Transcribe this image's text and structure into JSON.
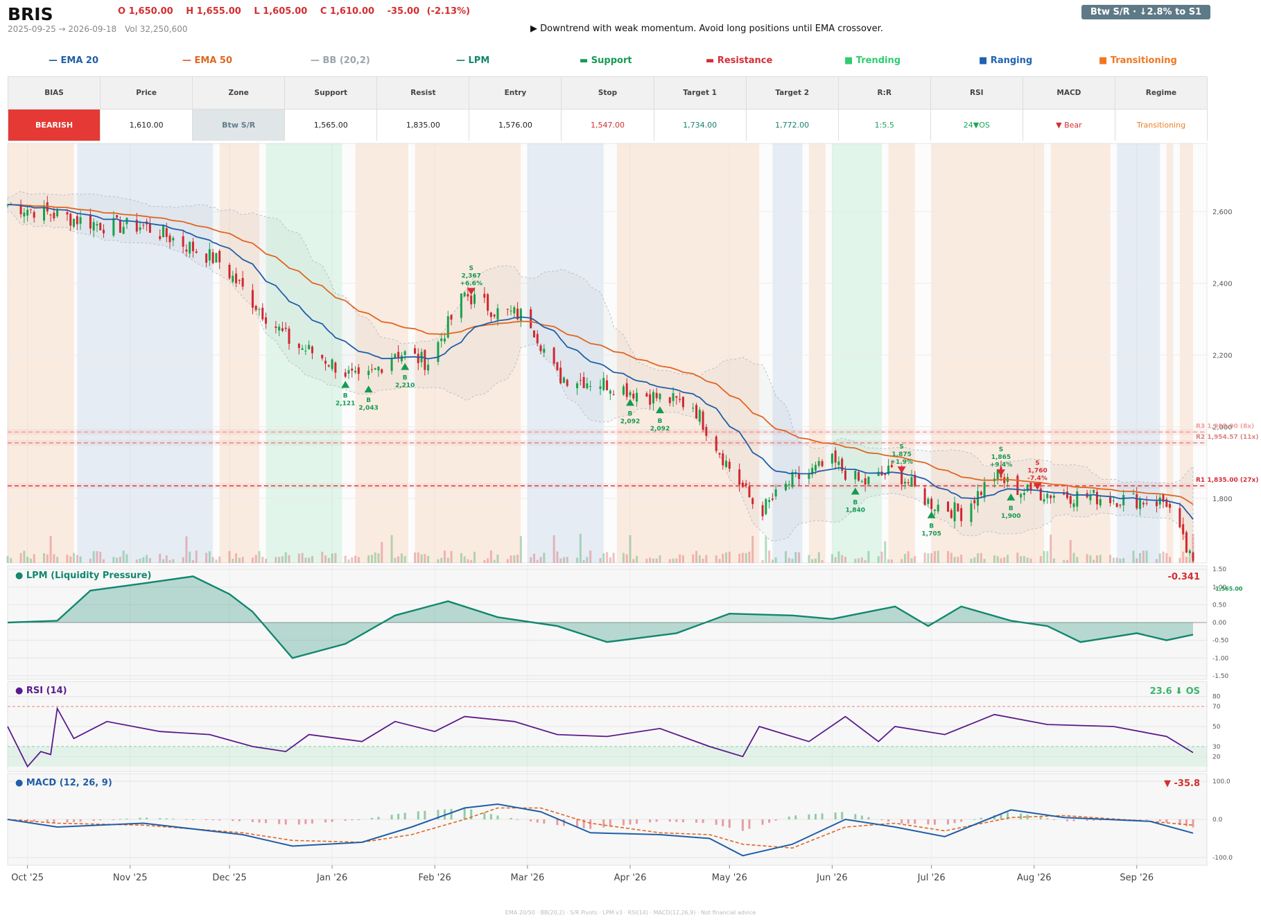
{
  "header": {
    "ticker": "BRIS",
    "ohlc": {
      "open": "O 1,650.00",
      "high": "H 1,655.00",
      "low": "L 1,605.00",
      "close": "C 1,610.00",
      "change": "-35.00",
      "change_pct": "(-2.13%)"
    },
    "range": "2025-09-25 → 2026-09-18",
    "volume": "Vol 32,250,600",
    "signal": "▶  Downtrend with weak momentum. Avoid long positions until EMA crossover.",
    "badge": "Btw S/R  ·  ↓2.8% to S1"
  },
  "legend": [
    {
      "glyph": "—",
      "label": "EMA 20",
      "color": "#1f5ea8"
    },
    {
      "glyph": "—",
      "label": "EMA 50",
      "color": "#e0651f"
    },
    {
      "glyph": "—",
      "label": "BB (20,2)",
      "color": "#9aa5ad"
    },
    {
      "glyph": "—",
      "label": "LPM",
      "color": "#12876e"
    },
    {
      "glyph": "▬",
      "label": "Support",
      "color": "#169a52"
    },
    {
      "glyph": "▬",
      "label": "Resistance",
      "color": "#d62d37"
    },
    {
      "glyph": "■",
      "label": "Trending",
      "color": "#2ecc71"
    },
    {
      "glyph": "■",
      "label": "Ranging",
      "color": "#1e62b0"
    },
    {
      "glyph": "■",
      "label": "Transitioning",
      "color": "#f07722"
    }
  ],
  "table": {
    "headers": [
      "BIAS",
      "Price",
      "Zone",
      "Support",
      "Resist",
      "Entry",
      "Stop",
      "Target 1",
      "Target 2",
      "R:R",
      "RSI",
      "MACD",
      "Regime"
    ],
    "values": [
      "BEARISH",
      "1,610.00",
      "Btw S/R",
      "1,565.00",
      "1,835.00",
      "1,576.00",
      "1,547.00",
      "1,734.00",
      "1,772.00",
      "1:5.5",
      "24▼OS",
      "▼ Bear",
      "Transitioning"
    ],
    "colors": [
      "#ffffff",
      "#222222",
      "#607d8b",
      "#222222",
      "#222222",
      "#222222",
      "#d32f2f",
      "#17806c",
      "#17806c",
      "#1ba45a",
      "#1ba45a",
      "#d32f2f",
      "#ef7d22"
    ],
    "backgrounds": [
      "#e53935",
      "#ffffff",
      "#e0e5e8",
      "#ffffff",
      "#ffffff",
      "#ffffff",
      "#ffffff",
      "#ffffff",
      "#ffffff",
      "#ffffff",
      "#ffffff",
      "#ffffff",
      "#ffffff"
    ]
  },
  "panels": {
    "lpm_title": "● LPM (Liquidity Pressure)",
    "lpm_value": "-0.341",
    "lpm_extra": "1,565.00",
    "rsi_title": "● RSI (14)",
    "rsi_value": "23.6 ⬇ OS",
    "macd_title": "● MACD (12, 26, 9)",
    "macd_value": "▼ -35.8"
  },
  "footer": "EMA 20/50  ·  BB(20,2)  ·  S/R Pivots  ·  LPM v3  ·  RSI(14)  ·  MACD(12,26,9)  ·  Not financial advice",
  "chart_data": {
    "type": "candlestick",
    "x_months": [
      "Oct '25",
      "Nov '25",
      "Dec '25",
      "Jan '26",
      "Feb '26",
      "Mar '26",
      "Apr '26",
      "May '26",
      "Jun '26",
      "Jul '26",
      "Aug '26",
      "Sep '26"
    ],
    "price_ticks": [
      "2,600",
      "2,400",
      "2,200",
      "2,000",
      "1,800"
    ],
    "ylim": [
      1620,
      2790
    ],
    "price_keypoints": [
      {
        "d": "2025-09-25",
        "c": 2620
      },
      {
        "d": "2025-10-10",
        "c": 2590
      },
      {
        "d": "2025-10-25",
        "c": 2560
      },
      {
        "d": "2025-11-05",
        "c": 2560
      },
      {
        "d": "2025-11-15",
        "c": 2520
      },
      {
        "d": "2025-11-28",
        "c": 2460
      },
      {
        "d": "2025-12-08",
        "c": 2350
      },
      {
        "d": "2025-12-20",
        "c": 2230
      },
      {
        "d": "2025-12-28",
        "c": 2200
      },
      {
        "d": "2026-01-10",
        "c": 2120
      },
      {
        "d": "2026-01-20",
        "c": 2210
      },
      {
        "d": "2026-01-30",
        "c": 2180
      },
      {
        "d": "2026-02-10",
        "c": 2370
      },
      {
        "d": "2026-02-20",
        "c": 2320
      },
      {
        "d": "2026-03-01",
        "c": 2310
      },
      {
        "d": "2026-03-10",
        "c": 2140
      },
      {
        "d": "2026-03-25",
        "c": 2120
      },
      {
        "d": "2026-04-05",
        "c": 2090
      },
      {
        "d": "2026-04-20",
        "c": 2060
      },
      {
        "d": "2026-04-30",
        "c": 1900
      },
      {
        "d": "2026-05-10",
        "c": 1760
      },
      {
        "d": "2026-05-20",
        "c": 1850
      },
      {
        "d": "2026-06-01",
        "c": 1900
      },
      {
        "d": "2026-06-10",
        "c": 1840
      },
      {
        "d": "2026-06-20",
        "c": 1880
      },
      {
        "d": "2026-06-30",
        "c": 1790
      },
      {
        "d": "2026-07-10",
        "c": 1760
      },
      {
        "d": "2026-07-20",
        "c": 1865
      },
      {
        "d": "2026-07-28",
        "c": 1820
      },
      {
        "d": "2026-08-10",
        "c": 1810
      },
      {
        "d": "2026-08-25",
        "c": 1800
      },
      {
        "d": "2026-09-10",
        "c": 1790
      },
      {
        "d": "2026-09-18",
        "c": 1610
      }
    ],
    "levels": [
      {
        "label": "R3 1,985.00 (8x)",
        "price": 1985,
        "color": "#f0a0a0"
      },
      {
        "label": "R2 1,954.57 (11x)",
        "price": 1955,
        "color": "#e08080"
      },
      {
        "label": "R1 1,835.00 (27x)",
        "price": 1835,
        "color": "#d62d37"
      }
    ],
    "signals": [
      {
        "type": "B",
        "d": "2026-01-05",
        "price": "2,121",
        "pct": ""
      },
      {
        "type": "B",
        "d": "2026-01-12",
        "price": "2,043",
        "pct": ""
      },
      {
        "type": "B",
        "d": "2026-01-23",
        "price": "2,210",
        "pct": ""
      },
      {
        "type": "S",
        "d": "2026-02-12",
        "price": "2,367",
        "pct": "+6.6%"
      },
      {
        "type": "B",
        "d": "2026-04-01",
        "price": "2,092",
        "pct": ""
      },
      {
        "type": "B",
        "d": "2026-04-10",
        "price": "2,092",
        "pct": ""
      },
      {
        "type": "B",
        "d": "2026-06-08",
        "price": "1,840",
        "pct": ""
      },
      {
        "type": "S",
        "d": "2026-06-22",
        "price": "1,875",
        "pct": "+1.9%"
      },
      {
        "type": "B",
        "d": "2026-07-01",
        "price": "1,705",
        "pct": ""
      },
      {
        "type": "S",
        "d": "2026-07-22",
        "price": "1,865",
        "pct": "+9.4%"
      },
      {
        "type": "B",
        "d": "2026-07-25",
        "price": "1,900",
        "pct": ""
      },
      {
        "type": "S",
        "d": "2026-08-02",
        "price": "1,760",
        "pct": "-7.4%"
      },
      {
        "type": "B",
        "d": "2026-09-17",
        "price": "",
        "pct": ""
      }
    ],
    "regimes": [
      {
        "from": "2025-09-25",
        "to": "2025-10-15",
        "kind": "transitioning"
      },
      {
        "from": "2025-10-16",
        "to": "2025-11-26",
        "kind": "ranging"
      },
      {
        "from": "2025-11-28",
        "to": "2025-12-10",
        "kind": "transitioning"
      },
      {
        "from": "2025-12-12",
        "to": "2026-01-04",
        "kind": "trending"
      },
      {
        "from": "2026-01-08",
        "to": "2026-01-24",
        "kind": "transitioning"
      },
      {
        "from": "2026-01-26",
        "to": "2026-02-27",
        "kind": "transitioning"
      },
      {
        "from": "2026-03-01",
        "to": "2026-03-24",
        "kind": "ranging"
      },
      {
        "from": "2026-03-28",
        "to": "2026-05-10",
        "kind": "transitioning"
      },
      {
        "from": "2026-05-14",
        "to": "2026-05-23",
        "kind": "ranging"
      },
      {
        "from": "2026-05-25",
        "to": "2026-05-30",
        "kind": "transitioning"
      },
      {
        "from": "2026-06-01",
        "to": "2026-06-16",
        "kind": "trending"
      },
      {
        "from": "2026-06-18",
        "to": "2026-06-26",
        "kind": "transitioning"
      },
      {
        "from": "2026-07-01",
        "to": "2026-08-04",
        "kind": "transitioning"
      },
      {
        "from": "2026-08-06",
        "to": "2026-08-24",
        "kind": "transitioning"
      },
      {
        "from": "2026-08-26",
        "to": "2026-09-08",
        "kind": "ranging"
      },
      {
        "from": "2026-09-10",
        "to": "2026-09-12",
        "kind": "transitioning"
      },
      {
        "from": "2026-09-14",
        "to": "2026-09-18",
        "kind": "transitioning"
      }
    ],
    "lpm_ticks": [
      "1.50",
      "1.00",
      "0.50",
      "0.00",
      "-0.50",
      "-1.00",
      "-1.50"
    ],
    "lpm_keypoints": [
      {
        "d": "2025-09-25",
        "v": 0
      },
      {
        "d": "2025-10-10",
        "v": 0.05
      },
      {
        "d": "2025-10-20",
        "v": 0.9
      },
      {
        "d": "2025-11-05",
        "v": 1.1
      },
      {
        "d": "2025-11-20",
        "v": 1.3
      },
      {
        "d": "2025-12-01",
        "v": 0.8
      },
      {
        "d": "2025-12-08",
        "v": 0.3
      },
      {
        "d": "2025-12-20",
        "v": -1.0
      },
      {
        "d": "2026-01-05",
        "v": -0.6
      },
      {
        "d": "2026-01-20",
        "v": 0.2
      },
      {
        "d": "2026-02-05",
        "v": 0.6
      },
      {
        "d": "2026-02-20",
        "v": 0.15
      },
      {
        "d": "2026-03-10",
        "v": -0.1
      },
      {
        "d": "2026-03-25",
        "v": -0.55
      },
      {
        "d": "2026-04-15",
        "v": -0.3
      },
      {
        "d": "2026-05-01",
        "v": 0.25
      },
      {
        "d": "2026-05-20",
        "v": 0.2
      },
      {
        "d": "2026-06-01",
        "v": 0.1
      },
      {
        "d": "2026-06-20",
        "v": 0.45
      },
      {
        "d": "2026-06-30",
        "v": -0.1
      },
      {
        "d": "2026-07-10",
        "v": 0.45
      },
      {
        "d": "2026-07-25",
        "v": 0.05
      },
      {
        "d": "2026-08-05",
        "v": -0.1
      },
      {
        "d": "2026-08-15",
        "v": -0.55
      },
      {
        "d": "2026-09-01",
        "v": -0.3
      },
      {
        "d": "2026-09-10",
        "v": -0.5
      },
      {
        "d": "2026-09-18",
        "v": -0.34
      }
    ],
    "rsi_ticks": [
      "80",
      "70",
      "50",
      "30",
      "20"
    ],
    "rsi_keypoints": [
      {
        "d": "2025-09-25",
        "v": 50
      },
      {
        "d": "2025-10-01",
        "v": 10
      },
      {
        "d": "2025-10-05",
        "v": 25
      },
      {
        "d": "2025-10-08",
        "v": 22
      },
      {
        "d": "2025-10-10",
        "v": 68
      },
      {
        "d": "2025-10-15",
        "v": 38
      },
      {
        "d": "2025-10-25",
        "v": 55
      },
      {
        "d": "2025-11-10",
        "v": 45
      },
      {
        "d": "2025-11-25",
        "v": 42
      },
      {
        "d": "2025-12-08",
        "v": 30
      },
      {
        "d": "2025-12-18",
        "v": 25
      },
      {
        "d": "2025-12-25",
        "v": 42
      },
      {
        "d": "2026-01-10",
        "v": 35
      },
      {
        "d": "2026-01-20",
        "v": 55
      },
      {
        "d": "2026-02-01",
        "v": 45
      },
      {
        "d": "2026-02-10",
        "v": 60
      },
      {
        "d": "2026-02-25",
        "v": 55
      },
      {
        "d": "2026-03-10",
        "v": 42
      },
      {
        "d": "2026-03-25",
        "v": 40
      },
      {
        "d": "2026-04-10",
        "v": 48
      },
      {
        "d": "2026-04-25",
        "v": 30
      },
      {
        "d": "2026-05-05",
        "v": 20
      },
      {
        "d": "2026-05-10",
        "v": 50
      },
      {
        "d": "2026-05-25",
        "v": 35
      },
      {
        "d": "2026-06-05",
        "v": 60
      },
      {
        "d": "2026-06-15",
        "v": 35
      },
      {
        "d": "2026-06-20",
        "v": 50
      },
      {
        "d": "2026-07-05",
        "v": 42
      },
      {
        "d": "2026-07-20",
        "v": 62
      },
      {
        "d": "2026-08-05",
        "v": 52
      },
      {
        "d": "2026-08-25",
        "v": 50
      },
      {
        "d": "2026-09-10",
        "v": 40
      },
      {
        "d": "2026-09-18",
        "v": 24
      }
    ],
    "macd_ticks": [
      "100.0",
      "0.0",
      "-100.0"
    ],
    "macd_keypoints": [
      {
        "d": "2025-09-25",
        "m": 0,
        "s": 0
      },
      {
        "d": "2025-10-10",
        "m": -20,
        "s": -10
      },
      {
        "d": "2025-11-05",
        "m": -10,
        "s": -15
      },
      {
        "d": "2025-12-05",
        "m": -40,
        "s": -35
      },
      {
        "d": "2025-12-20",
        "m": -70,
        "s": -55
      },
      {
        "d": "2026-01-10",
        "m": -60,
        "s": -60
      },
      {
        "d": "2026-01-25",
        "m": -20,
        "s": -40
      },
      {
        "d": "2026-02-10",
        "m": 30,
        "s": 0
      },
      {
        "d": "2026-02-20",
        "m": 40,
        "s": 30
      },
      {
        "d": "2026-03-05",
        "m": 20,
        "s": 30
      },
      {
        "d": "2026-03-20",
        "m": -35,
        "s": -10
      },
      {
        "d": "2026-04-10",
        "m": -40,
        "s": -35
      },
      {
        "d": "2026-04-25",
        "m": -50,
        "s": -40
      },
      {
        "d": "2026-05-05",
        "m": -95,
        "s": -65
      },
      {
        "d": "2026-05-20",
        "m": -65,
        "s": -75
      },
      {
        "d": "2026-06-05",
        "m": 0,
        "s": -20
      },
      {
        "d": "2026-06-20",
        "m": -20,
        "s": -10
      },
      {
        "d": "2026-07-05",
        "m": -45,
        "s": -30
      },
      {
        "d": "2026-07-25",
        "m": 25,
        "s": 5
      },
      {
        "d": "2026-08-10",
        "m": 5,
        "s": 10
      },
      {
        "d": "2026-09-05",
        "m": -5,
        "s": -5
      },
      {
        "d": "2026-09-18",
        "m": -36,
        "s": -15
      }
    ]
  }
}
